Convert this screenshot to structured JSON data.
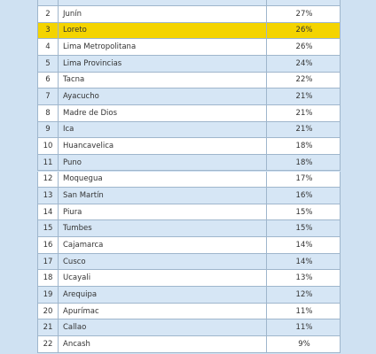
{
  "table": {
    "rows": [
      [
        "2",
        "Junín",
        "27%"
      ],
      [
        "3",
        "Loreto",
        "26%"
      ],
      [
        "4",
        "Lima Metropolitana",
        "26%"
      ],
      [
        "5",
        "Lima Provincias",
        "24%"
      ],
      [
        "6",
        "Tacna",
        "22%"
      ],
      [
        "7",
        "Ayacucho",
        "21%"
      ],
      [
        "8",
        "Madre de Dios",
        "21%"
      ],
      [
        "9",
        "Ica",
        "21%"
      ],
      [
        "10",
        "Huancavelica",
        "18%"
      ],
      [
        "11",
        "Puno",
        "18%"
      ],
      [
        "12",
        "Moquegua",
        "17%"
      ],
      [
        "13",
        "San Martín",
        "16%"
      ],
      [
        "14",
        "Piura",
        "15%"
      ],
      [
        "15",
        "Tumbes",
        "15%"
      ],
      [
        "16",
        "Cajamarca",
        "14%"
      ],
      [
        "17",
        "Cusco",
        "14%"
      ],
      [
        "18",
        "Ucayali",
        "13%"
      ],
      [
        "19",
        "Arequipa",
        "12%"
      ],
      [
        "20",
        "Apurímac",
        "11%"
      ],
      [
        "21",
        "Callao",
        "11%"
      ],
      [
        "22",
        "Ancash",
        "9%"
      ]
    ],
    "highlight_row": 1
  }
}
